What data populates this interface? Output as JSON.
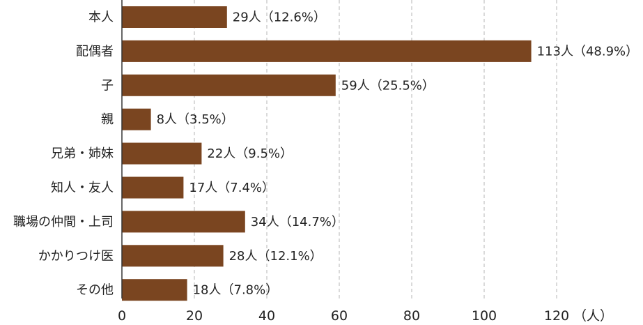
{
  "chart_data": {
    "type": "bar",
    "orientation": "horizontal",
    "categories": [
      "本人",
      "配偶者",
      "子",
      "親",
      "兄弟・姉妹",
      "知人・友人",
      "職場の仲間・上司",
      "かかりつけ医",
      "その他"
    ],
    "values": [
      29,
      113,
      59,
      8,
      22,
      17,
      34,
      28,
      18
    ],
    "value_labels": [
      "29人（12.6%）",
      "113人（48.9%）",
      "59人（25.5%）",
      "8人（3.5%）",
      "22人（9.5%）",
      "17人（7.4%）",
      "34人（14.7%）",
      "28人（12.1%）",
      "18人（7.8%）"
    ],
    "xlim": [
      0,
      120
    ],
    "xticks": [
      "0",
      "20",
      "40",
      "60",
      "80",
      "100",
      "120"
    ],
    "x_unit": "（人）",
    "grid": true,
    "bar_color": "#7a4520"
  }
}
